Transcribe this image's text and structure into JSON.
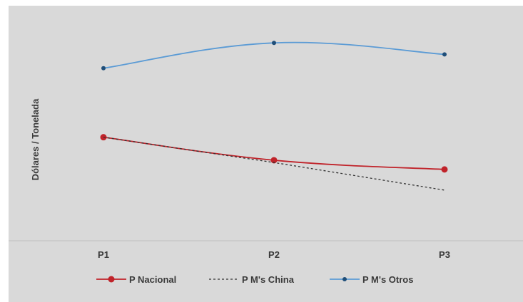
{
  "chart_data": {
    "type": "line",
    "title": "",
    "xlabel": "",
    "ylabel": "Dólares / Tonelada",
    "categories": [
      "P1",
      "P2",
      "P3"
    ],
    "ylim": [
      0,
      100
    ],
    "grid": false,
    "legend_position": "bottom",
    "series": [
      {
        "name": "P Nacional",
        "values": [
          45,
          35,
          31
        ],
        "color": "#c0232a",
        "dash": "solid",
        "marker": "circle"
      },
      {
        "name": "P M's China",
        "values": [
          45,
          34,
          22
        ],
        "color": "#333333",
        "dash": "dashed",
        "marker": "none"
      },
      {
        "name": "P M's Otros",
        "values": [
          75,
          86,
          81
        ],
        "color": "#5b9bd5",
        "dash": "solid",
        "marker": "diamond"
      }
    ]
  }
}
